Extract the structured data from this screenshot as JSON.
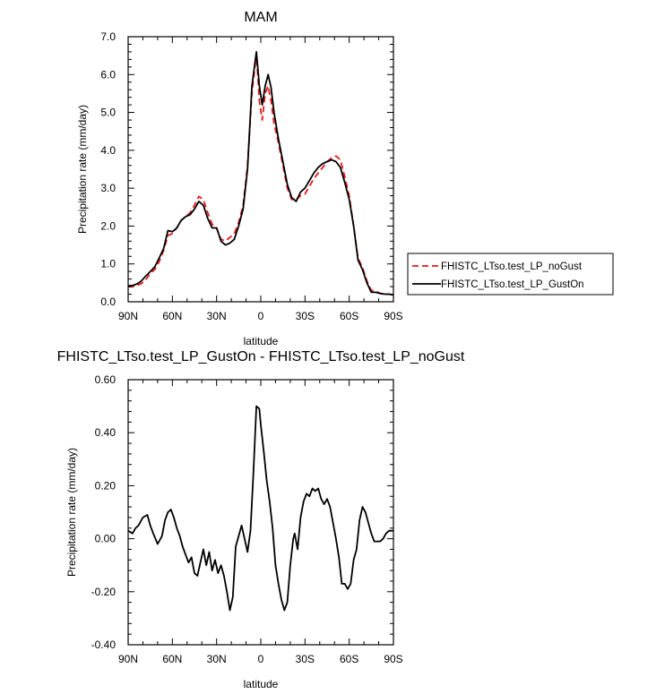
{
  "chart_data": [
    {
      "type": "line",
      "title": "MAM",
      "xlabel": "latitude",
      "ylabel": "Precipitation rate (mm/day)",
      "xlim": [
        90,
        -90
      ],
      "ylim": [
        0,
        7
      ],
      "xticks": [
        90,
        60,
        30,
        0,
        -30,
        -60,
        -90
      ],
      "xticklabels": [
        "90N",
        "60N",
        "30N",
        "0",
        "30S",
        "60S",
        "90S"
      ],
      "yticks": [
        0,
        1,
        2,
        3,
        4,
        5,
        6,
        7
      ],
      "yticklabels": [
        "0.0",
        "1.0",
        "2.0",
        "3.0",
        "4.0",
        "5.0",
        "6.0",
        "7.0"
      ],
      "legend": "right",
      "series": [
        {
          "name": "FHISTC_LTso.test_LP_noGust",
          "color": "#e8191b",
          "dash": "dashed",
          "x": [
            90,
            87,
            84,
            81,
            78,
            75,
            72,
            69,
            66,
            63,
            60,
            57,
            54,
            51,
            48,
            45,
            42,
            39,
            36,
            33,
            30,
            27,
            24,
            21,
            18,
            15,
            12,
            9,
            6,
            3,
            1,
            -1,
            -3,
            -5,
            -7,
            -9,
            -12,
            -15,
            -18,
            -21,
            -24,
            -27,
            -30,
            -33,
            -36,
            -39,
            -42,
            -45,
            -48,
            -51,
            -54,
            -57,
            -60,
            -63,
            -66,
            -69,
            -72,
            -75,
            -78,
            -81,
            -84,
            -87,
            -90
          ],
          "y": [
            0.4,
            0.4,
            0.43,
            0.48,
            0.58,
            0.75,
            0.85,
            1.05,
            1.35,
            1.75,
            1.8,
            1.95,
            2.15,
            2.25,
            2.35,
            2.55,
            2.78,
            2.7,
            2.35,
            2.05,
            1.95,
            1.65,
            1.6,
            1.7,
            1.8,
            2.1,
            2.55,
            3.6,
            5.5,
            6.55,
            5.3,
            4.8,
            5.5,
            5.7,
            5.3,
            4.7,
            4.2,
            3.6,
            3.0,
            2.7,
            2.7,
            2.8,
            2.85,
            3.05,
            3.25,
            3.4,
            3.55,
            3.7,
            3.8,
            3.85,
            3.75,
            3.3,
            2.8,
            2.0,
            1.15,
            0.9,
            0.55,
            0.3,
            0.28,
            0.22,
            0.2,
            0.2,
            0.18
          ]
        },
        {
          "name": "FHISTC_LTso.test_LP_GustOn",
          "color": "#000000",
          "dash": "solid",
          "x": [
            90,
            87,
            84,
            81,
            78,
            75,
            72,
            69,
            66,
            63,
            60,
            57,
            54,
            51,
            48,
            45,
            42,
            39,
            36,
            33,
            30,
            27,
            24,
            21,
            18,
            15,
            12,
            9,
            6,
            3,
            1,
            -1,
            -3,
            -5,
            -7,
            -9,
            -12,
            -15,
            -18,
            -21,
            -24,
            -27,
            -30,
            -33,
            -36,
            -39,
            -42,
            -45,
            -48,
            -51,
            -54,
            -57,
            -60,
            -63,
            -66,
            -69,
            -72,
            -75,
            -78,
            -81,
            -84,
            -87,
            -90
          ],
          "y": [
            0.42,
            0.43,
            0.47,
            0.55,
            0.68,
            0.8,
            0.92,
            1.15,
            1.4,
            1.88,
            1.85,
            1.95,
            2.15,
            2.25,
            2.3,
            2.45,
            2.65,
            2.55,
            2.2,
            1.95,
            1.95,
            1.6,
            1.5,
            1.55,
            1.65,
            2.0,
            2.45,
            3.5,
            5.7,
            6.6,
            5.7,
            5.2,
            5.7,
            6.0,
            5.65,
            5.0,
            4.3,
            3.7,
            3.1,
            2.75,
            2.65,
            2.9,
            3.0,
            3.2,
            3.4,
            3.55,
            3.65,
            3.7,
            3.75,
            3.7,
            3.55,
            3.15,
            2.7,
            2.0,
            1.1,
            0.85,
            0.5,
            0.25,
            0.25,
            0.22,
            0.2,
            0.2,
            0.18
          ]
        }
      ]
    },
    {
      "type": "line",
      "title": "FHISTC_LTso.test_LP_GustOn - FHISTC_LTso.test_LP_noGust",
      "xlabel": "latitude",
      "ylabel": "Precipitation rate (mm/day)",
      "xlim": [
        90,
        -90
      ],
      "ylim": [
        -0.4,
        0.6
      ],
      "xticks": [
        90,
        60,
        30,
        0,
        -30,
        -60,
        -90
      ],
      "xticklabels": [
        "90N",
        "60N",
        "30N",
        "0",
        "30S",
        "60S",
        "90S"
      ],
      "yticks": [
        -0.4,
        -0.2,
        0,
        0.2,
        0.4,
        0.6
      ],
      "yticklabels": [
        "-0.40",
        "-0.20",
        "0.00",
        "0.20",
        "0.40",
        "0.60"
      ],
      "series": [
        {
          "color": "#000000",
          "dash": "solid",
          "x": [
            90,
            87,
            85,
            83,
            80,
            77,
            75,
            73,
            70,
            67,
            65,
            63,
            61,
            59,
            57,
            55,
            53,
            51,
            49,
            47,
            45,
            43,
            41,
            39,
            37,
            35,
            33,
            31,
            29,
            27,
            25,
            23,
            21,
            19,
            17,
            15,
            13,
            11,
            9,
            7,
            5,
            3,
            1,
            0,
            -2,
            -4,
            -6,
            -8,
            -10,
            -12,
            -14,
            -16,
            -18,
            -20,
            -22,
            -23,
            -25,
            -27,
            -29,
            -31,
            -33,
            -35,
            -37,
            -39,
            -41,
            -43,
            -45,
            -47,
            -49,
            -51,
            -53,
            -55,
            -57,
            -59,
            -61,
            -63,
            -65,
            -67,
            -69,
            -71,
            -73,
            -75,
            -77,
            -79,
            -81,
            -83,
            -85,
            -87,
            -90
          ],
          "y": [
            0.03,
            0.02,
            0.04,
            0.05,
            0.08,
            0.09,
            0.05,
            0.02,
            -0.02,
            0.01,
            0.07,
            0.1,
            0.11,
            0.08,
            0.04,
            0.01,
            -0.03,
            -0.06,
            -0.09,
            -0.07,
            -0.13,
            -0.14,
            -0.09,
            -0.04,
            -0.1,
            -0.05,
            -0.12,
            -0.08,
            -0.13,
            -0.1,
            -0.14,
            -0.2,
            -0.27,
            -0.22,
            -0.03,
            0.01,
            0.05,
            0.0,
            -0.05,
            0.03,
            0.25,
            0.5,
            0.49,
            0.43,
            0.33,
            0.22,
            0.14,
            0.04,
            -0.1,
            -0.17,
            -0.23,
            -0.27,
            -0.24,
            -0.1,
            0.0,
            0.02,
            -0.04,
            0.08,
            0.14,
            0.17,
            0.16,
            0.19,
            0.18,
            0.19,
            0.15,
            0.13,
            0.15,
            0.12,
            0.06,
            0.0,
            -0.07,
            -0.17,
            -0.17,
            -0.19,
            -0.17,
            -0.08,
            -0.04,
            0.07,
            0.12,
            0.1,
            0.06,
            0.02,
            -0.01,
            -0.01,
            -0.01,
            0.0,
            0.02,
            0.03,
            0.03
          ]
        }
      ]
    }
  ]
}
